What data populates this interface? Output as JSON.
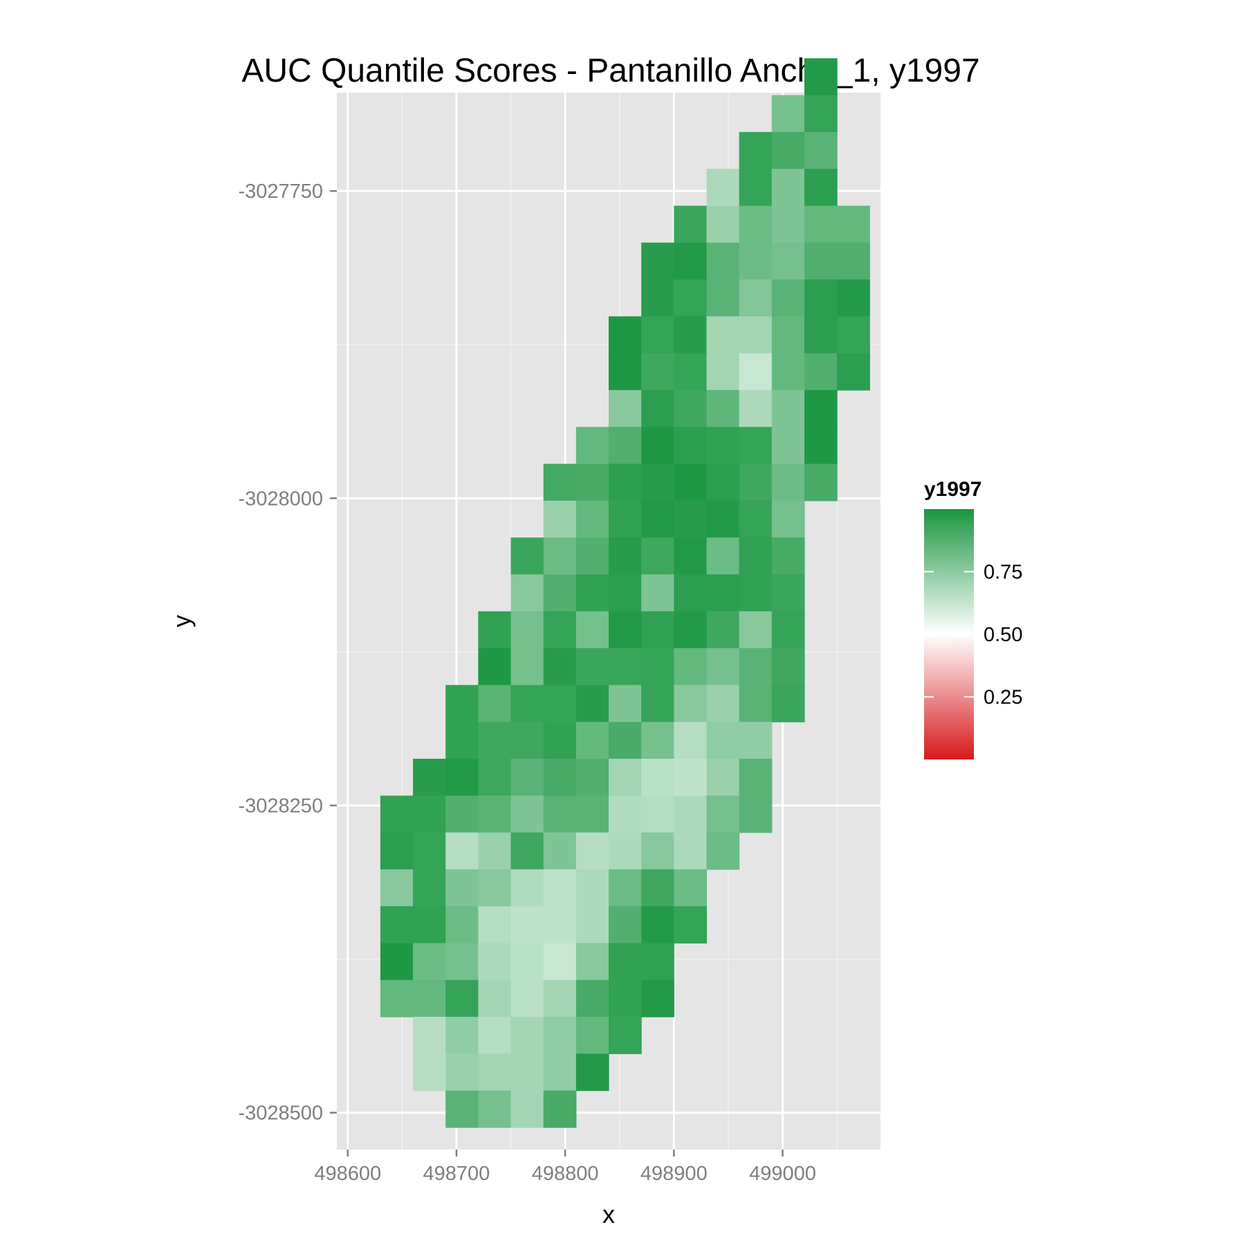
{
  "chart_data": {
    "type": "heatmap",
    "title": "AUC Quantile Scores - Pantanillo Ancho_1, y1997",
    "xlabel": "x",
    "ylabel": "y",
    "xlim": [
      498590,
      499090
    ],
    "ylim": [
      -3028530,
      -3027670
    ],
    "x_ticks": [
      498600,
      498700,
      498800,
      498900,
      499000
    ],
    "y_ticks": [
      -3027750,
      -3028000,
      -3028250,
      -3028500
    ],
    "x_tick_labels": [
      "498600",
      "498700",
      "498800",
      "498900",
      "499000"
    ],
    "y_tick_labels": [
      "-3027750",
      "-3028000",
      "-3028250",
      "-3028500"
    ],
    "cell_size": 30,
    "grid": true,
    "legend": {
      "title": "y1997",
      "position": "right",
      "range": [
        0,
        1
      ],
      "breaks": [
        0.75,
        0.5,
        0.25
      ],
      "break_labels": [
        "0.75",
        "0.50",
        "0.25"
      ],
      "low_color": "#d7191c",
      "mid_color": "#ffffff",
      "high_color": "#1a9641",
      "midpoint": 0.5
    },
    "colors": {
      "panel": "#e5e5e5",
      "grid_major": "#ffffff",
      "grid_minor": "#f2f2f2"
    },
    "y_top": -3027642,
    "rows": [
      {
        "x0": 499020,
        "values": [
          0.98
        ]
      },
      {
        "x0": 498990,
        "values": [
          0.8,
          0.94
        ]
      },
      {
        "x0": 498960,
        "values": [
          0.94,
          0.9,
          0.86
        ]
      },
      {
        "x0": 498930,
        "values": [
          0.68,
          0.94,
          0.78,
          0.96
        ]
      },
      {
        "x0": 498900,
        "values": [
          0.93,
          0.72,
          0.82,
          0.78,
          0.84,
          0.84
        ]
      },
      {
        "x0": 498870,
        "values": [
          0.97,
          0.98,
          0.86,
          0.82,
          0.8,
          0.88,
          0.88
        ]
      },
      {
        "x0": 498870,
        "values": [
          0.97,
          0.94,
          0.86,
          0.77,
          0.86,
          0.96,
          0.98
        ]
      },
      {
        "x0": 498840,
        "values": [
          0.99,
          0.94,
          0.97,
          0.7,
          0.7,
          0.84,
          0.96,
          0.94
        ]
      },
      {
        "x0": 498840,
        "values": [
          0.99,
          0.92,
          0.94,
          0.7,
          0.62,
          0.84,
          0.88,
          0.96
        ]
      },
      {
        "x0": 498840,
        "values": [
          0.76,
          0.96,
          0.92,
          0.85,
          0.68,
          0.78,
          0.99
        ]
      },
      {
        "x0": 498810,
        "values": [
          0.84,
          0.88,
          0.99,
          0.96,
          0.95,
          0.94,
          0.78,
          0.99
        ]
      },
      {
        "x0": 498780,
        "values": [
          0.91,
          0.9,
          0.96,
          0.97,
          0.99,
          0.96,
          0.92,
          0.82,
          0.9
        ]
      },
      {
        "x0": 498780,
        "values": [
          0.72,
          0.84,
          0.95,
          0.98,
          0.97,
          0.98,
          0.94,
          0.8
        ]
      },
      {
        "x0": 498750,
        "values": [
          0.93,
          0.82,
          0.88,
          0.97,
          0.92,
          0.98,
          0.82,
          0.95,
          0.9
        ]
      },
      {
        "x0": 498750,
        "values": [
          0.76,
          0.88,
          0.95,
          0.96,
          0.78,
          0.96,
          0.96,
          0.95,
          0.93
        ]
      },
      {
        "x0": 498720,
        "values": [
          0.95,
          0.8,
          0.94,
          0.8,
          0.98,
          0.95,
          0.98,
          0.92,
          0.76,
          0.94
        ]
      },
      {
        "x0": 498720,
        "values": [
          0.99,
          0.8,
          0.97,
          0.93,
          0.93,
          0.94,
          0.84,
          0.8,
          0.86,
          0.92
        ]
      },
      {
        "x0": 498690,
        "values": [
          0.95,
          0.86,
          0.94,
          0.94,
          0.97,
          0.78,
          0.94,
          0.76,
          0.72,
          0.86,
          0.93
        ]
      },
      {
        "x0": 498690,
        "values": [
          0.95,
          0.92,
          0.92,
          0.95,
          0.84,
          0.9,
          0.8,
          0.66,
          0.74,
          0.74
        ]
      },
      {
        "x0": 498660,
        "values": [
          0.97,
          0.98,
          0.92,
          0.86,
          0.9,
          0.88,
          0.7,
          0.65,
          0.64,
          0.72,
          0.86
        ]
      },
      {
        "x0": 498630,
        "values": [
          0.95,
          0.95,
          0.88,
          0.86,
          0.78,
          0.86,
          0.86,
          0.67,
          0.66,
          0.68,
          0.8,
          0.86
        ]
      },
      {
        "x0": 498630,
        "values": [
          0.96,
          0.94,
          0.66,
          0.72,
          0.92,
          0.78,
          0.66,
          0.68,
          0.76,
          0.68,
          0.82
        ]
      },
      {
        "x0": 498630,
        "values": [
          0.76,
          0.94,
          0.78,
          0.76,
          0.67,
          0.64,
          0.68,
          0.82,
          0.92,
          0.82
        ]
      },
      {
        "x0": 498630,
        "values": [
          0.95,
          0.95,
          0.82,
          0.66,
          0.64,
          0.64,
          0.68,
          0.88,
          0.98,
          0.94
        ]
      },
      {
        "x0": 498630,
        "values": [
          0.99,
          0.82,
          0.8,
          0.68,
          0.65,
          0.62,
          0.76,
          0.95,
          0.95
        ]
      },
      {
        "x0": 498630,
        "values": [
          0.84,
          0.84,
          0.94,
          0.7,
          0.65,
          0.7,
          0.9,
          0.95,
          0.98
        ]
      },
      {
        "x0": 498660,
        "values": [
          0.66,
          0.74,
          0.66,
          0.7,
          0.74,
          0.84,
          0.94
        ]
      },
      {
        "x0": 498660,
        "values": [
          0.66,
          0.72,
          0.7,
          0.7,
          0.74,
          0.98
        ]
      },
      {
        "x0": 498690,
        "values": [
          0.86,
          0.8,
          0.7,
          0.9
        ]
      }
    ]
  }
}
